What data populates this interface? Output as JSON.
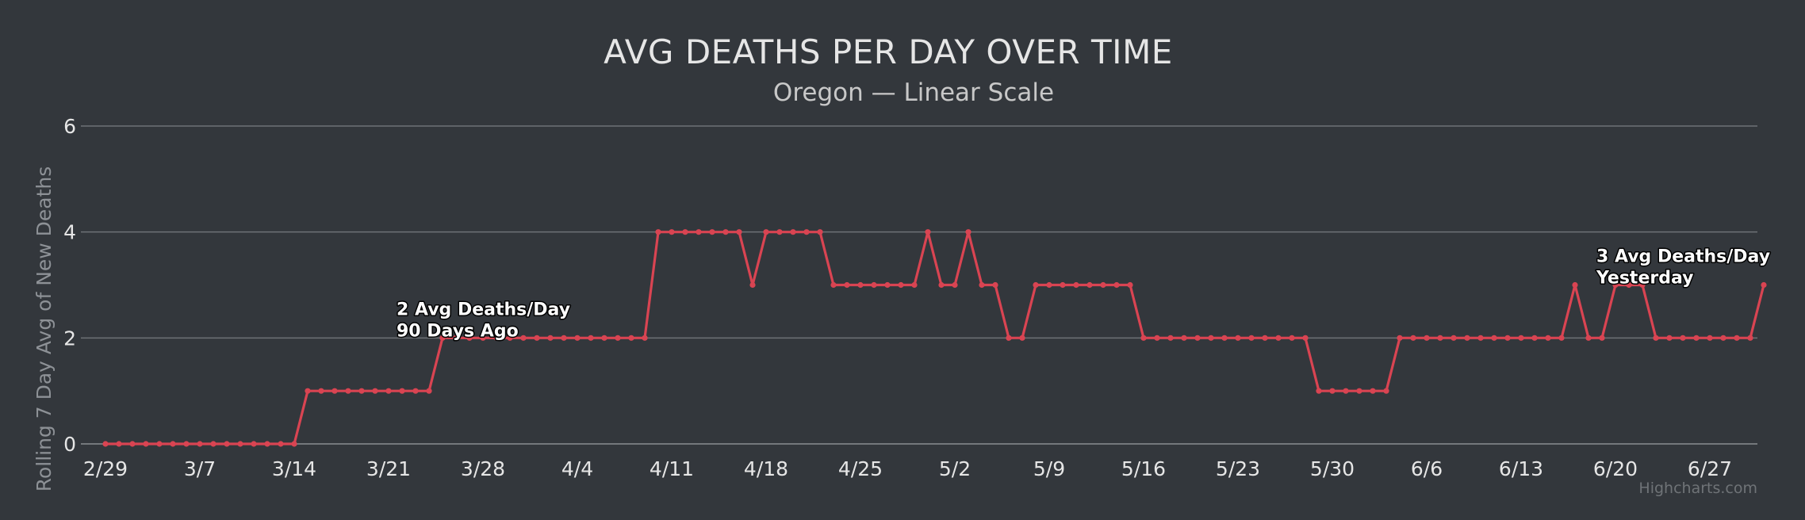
{
  "chart_data": {
    "type": "line",
    "title": "AVG DEATHS PER DAY OVER TIME",
    "subtitle": "Oregon — Linear Scale",
    "ylabel": "Rolling 7 Day Avg of New Deaths",
    "ylim": [
      0,
      6
    ],
    "yticks": [
      "0",
      "2",
      "4",
      "6"
    ],
    "xtick_labels": [
      "2/29",
      "3/7",
      "3/14",
      "3/21",
      "3/28",
      "4/4",
      "4/11",
      "4/18",
      "4/25",
      "5/2",
      "5/9",
      "5/16",
      "5/23",
      "5/30",
      "6/6",
      "6/13",
      "6/20",
      "6/27"
    ],
    "start_label": "2/29",
    "grid": true,
    "series": [
      {
        "values": [
          0,
          0,
          0,
          0,
          0,
          0,
          0,
          0,
          0,
          0,
          0,
          0,
          0,
          0,
          0,
          1,
          1,
          1,
          1,
          1,
          1,
          1,
          1,
          1,
          1,
          2,
          2,
          2,
          2,
          2,
          2,
          2,
          2,
          2,
          2,
          2,
          2,
          2,
          2,
          2,
          2,
          4,
          4,
          4,
          4,
          4,
          4,
          4,
          3,
          4,
          4,
          4,
          4,
          4,
          3,
          3,
          3,
          3,
          3,
          3,
          3,
          4,
          3,
          3,
          4,
          3,
          3,
          2,
          2,
          3,
          3,
          3,
          3,
          3,
          3,
          3,
          3,
          2,
          2,
          2,
          2,
          2,
          2,
          2,
          2,
          2,
          2,
          2,
          2,
          2,
          1,
          1,
          1,
          1,
          1,
          1,
          2,
          2,
          2,
          2,
          2,
          2,
          2,
          2,
          2,
          2,
          2,
          2,
          2,
          3,
          2,
          2,
          3,
          3,
          3,
          2,
          2,
          2,
          2,
          2,
          2,
          2,
          2,
          3
        ],
        "color": "#d94452"
      }
    ],
    "annotations": [
      {
        "day": 25,
        "line1": "2 Avg Deaths/Day",
        "line2": "90 Days Ago"
      },
      {
        "day": 114,
        "line1": "3 Avg Deaths/Day",
        "line2": "Yesterday"
      }
    ],
    "credits": "Highcharts.com"
  }
}
